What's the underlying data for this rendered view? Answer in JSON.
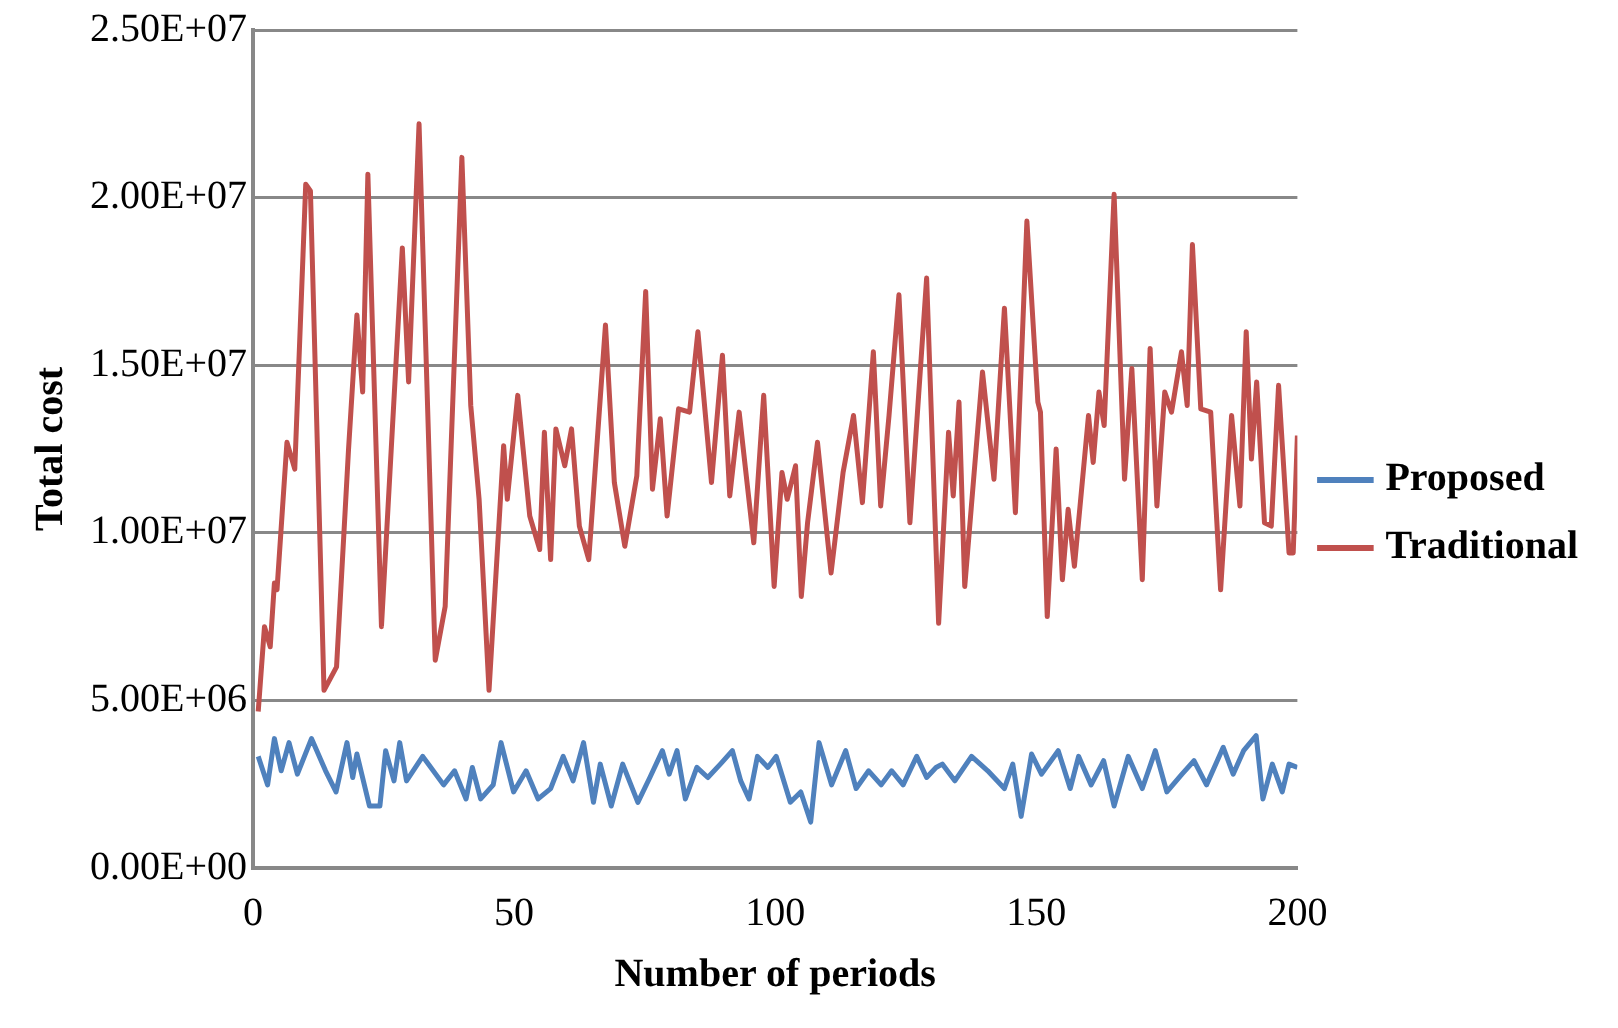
{
  "chart_data": {
    "type": "line",
    "xlabel": "Number of periods",
    "ylabel": "Total cost",
    "xlim": [
      0,
      200
    ],
    "xticks": [
      0,
      50,
      100,
      150,
      200
    ],
    "ylim": [
      0,
      25000000
    ],
    "yticks": [
      {
        "value": 0,
        "label": "0.00E+00"
      },
      {
        "value": 5000000,
        "label": "5.00E+06"
      },
      {
        "value": 10000000,
        "label": "1.00E+07"
      },
      {
        "value": 15000000,
        "label": "1.50E+07"
      },
      {
        "value": 20000000,
        "label": "2.00E+07"
      },
      {
        "value": 25000000,
        "label": "2.50E+07"
      }
    ],
    "grid": "y",
    "legend": "right",
    "marker": "none",
    "line_style": "solid",
    "series": [
      {
        "name": "Proposed",
        "color": "#4f81bd",
        "x": [
          1,
          2.8,
          4.1,
          5.4,
          6.9,
          8.5,
          11.2,
          13.9,
          15.9,
          18,
          19.1,
          19.9,
          22.3,
          24.3,
          25.4,
          27,
          28.1,
          29.4,
          32.5,
          36.5,
          38.6,
          40.8,
          42,
          43.6,
          46,
          47.5,
          49.9,
          52.3,
          54.6,
          57,
          59.4,
          61.3,
          63.3,
          65.2,
          66.5,
          68.6,
          70.8,
          73.7,
          76,
          78.4,
          79.7,
          81.2,
          82.8,
          85,
          87.1,
          89.5,
          91.8,
          93.4,
          95,
          96.6,
          98.6,
          100.2,
          102.9,
          104.9,
          106.8,
          108.4,
          110.8,
          113.5,
          115.5,
          117.9,
          120.3,
          122.3,
          124.5,
          127.1,
          129,
          130.8,
          132,
          134.4,
          137.6,
          140.7,
          143.9,
          145.5,
          147.1,
          149.1,
          151,
          154.2,
          156.5,
          158.1,
          160.5,
          162.9,
          164.9,
          167.6,
          170.3,
          172.8,
          175,
          177.9,
          180.2,
          182.6,
          185.8,
          187.7,
          189.7,
          192.1,
          193.4,
          195.2,
          197.1,
          198.4,
          200
        ],
        "values": [
          3330000,
          2480000,
          3860000,
          2900000,
          3740000,
          2800000,
          3860000,
          2900000,
          2270000,
          3740000,
          2700000,
          3400000,
          1850000,
          1850000,
          3500000,
          2600000,
          3740000,
          2600000,
          3330000,
          2480000,
          2900000,
          2060000,
          3000000,
          2060000,
          2480000,
          3740000,
          2270000,
          2900000,
          2060000,
          2370000,
          3330000,
          2600000,
          3740000,
          1960000,
          3100000,
          1850000,
          3100000,
          1960000,
          2700000,
          3500000,
          2800000,
          3500000,
          2060000,
          3000000,
          2700000,
          3100000,
          3500000,
          2600000,
          2060000,
          3330000,
          3000000,
          3330000,
          1960000,
          2270000,
          1370000,
          3740000,
          2480000,
          3500000,
          2370000,
          2900000,
          2480000,
          2900000,
          2480000,
          3330000,
          2700000,
          3000000,
          3100000,
          2600000,
          3330000,
          2900000,
          2370000,
          3100000,
          1540000,
          3400000,
          2800000,
          3500000,
          2370000,
          3330000,
          2480000,
          3200000,
          1850000,
          3330000,
          2370000,
          3500000,
          2270000,
          2800000,
          3200000,
          2480000,
          3600000,
          2800000,
          3500000,
          3950000,
          2060000,
          3100000,
          2270000,
          3100000,
          3000000
        ]
      },
      {
        "name": "Traditional",
        "color": "#c0504d",
        "x": [
          1,
          2.2,
          3.3,
          4.1,
          4.6,
          6.5,
          8,
          10.1,
          11,
          13.6,
          16,
          18.3,
          19.9,
          21,
          22,
          24.6,
          28.6,
          29.8,
          31.8,
          34.9,
          36.8,
          40,
          41.7,
          43.3,
          45.2,
          48,
          48.7,
          50.7,
          53,
          54.9,
          55.8,
          57,
          58,
          59.7,
          61,
          62.5,
          64.3,
          67.5,
          69.2,
          71.2,
          73.5,
          75.2,
          76.5,
          78,
          79.3,
          81.5,
          83.6,
          85.2,
          87.8,
          89.9,
          91.3,
          93.1,
          95.9,
          97.8,
          99.8,
          101.3,
          102.3,
          103.9,
          105,
          106.2,
          108.1,
          110.7,
          113,
          115,
          116.7,
          118.8,
          120.2,
          121.8,
          123.7,
          125.8,
          129,
          131.3,
          133.2,
          134.1,
          135.2,
          136.3,
          139.7,
          141.9,
          143.9,
          146,
          148.2,
          150.3,
          150.8,
          152.1,
          153.8,
          155,
          156.1,
          157.3,
          160,
          160.9,
          162,
          163,
          164.9,
          166.9,
          168.3,
          170.3,
          171.8,
          173.1,
          174.6,
          175.9,
          177.8,
          178.9,
          179.9,
          181.5,
          183.4,
          185.3,
          187.4,
          189,
          190.2,
          191.2,
          192.2,
          193.7,
          195,
          196.4,
          198.4,
          199.2,
          200
        ],
        "values": [
          4670000,
          7200000,
          6600000,
          8500000,
          8300000,
          12700000,
          11900000,
          20400000,
          20200000,
          5300000,
          6000000,
          12500000,
          16500000,
          14200000,
          20700000,
          7200000,
          18500000,
          14500000,
          22200000,
          6200000,
          7800000,
          21200000,
          13800000,
          11000000,
          5300000,
          12600000,
          11000000,
          14100000,
          10500000,
          9500000,
          13000000,
          9200000,
          13100000,
          12000000,
          13100000,
          10200000,
          9200000,
          16200000,
          11500000,
          9600000,
          11700000,
          17200000,
          11300000,
          13400000,
          10500000,
          13700000,
          13600000,
          16000000,
          11500000,
          15300000,
          11100000,
          13600000,
          9700000,
          14100000,
          8400000,
          11800000,
          11000000,
          12000000,
          8100000,
          10300000,
          12700000,
          8800000,
          11800000,
          13500000,
          10900000,
          15400000,
          10800000,
          13500000,
          17100000,
          10300000,
          17600000,
          7300000,
          13000000,
          11100000,
          13900000,
          8400000,
          14800000,
          11600000,
          16700000,
          10600000,
          19300000,
          13900000,
          13600000,
          7500000,
          12500000,
          8600000,
          10700000,
          9000000,
          13500000,
          12100000,
          14200000,
          13200000,
          20100000,
          11600000,
          14900000,
          8600000,
          15500000,
          10800000,
          14200000,
          13600000,
          15400000,
          13800000,
          18600000,
          13700000,
          13600000,
          8300000,
          13500000,
          10800000,
          16000000,
          12200000,
          14500000,
          10300000,
          10200000,
          14400000,
          9400000,
          9400000,
          12900000
        ]
      }
    ]
  }
}
